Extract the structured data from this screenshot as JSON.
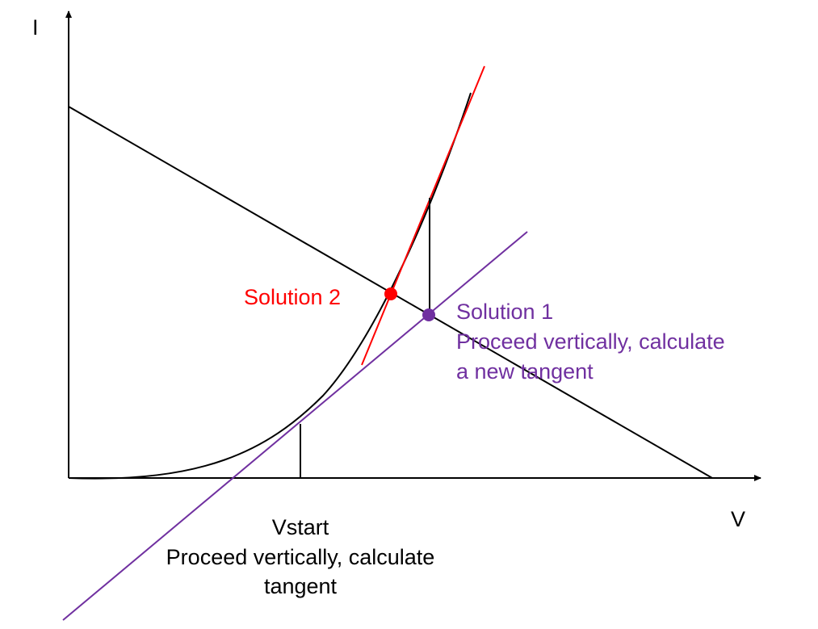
{
  "axes": {
    "y_label": "I",
    "x_label": "V"
  },
  "annotations": {
    "solution_2": "Solution 2",
    "solution_1": {
      "title": "Solution 1",
      "lines": [
        "Proceed vertically, calculate",
        "a new tangent"
      ]
    },
    "vstart": {
      "title": "Vstart",
      "lines": [
        "Proceed vertically, calculate",
        "tangent"
      ]
    }
  }
}
